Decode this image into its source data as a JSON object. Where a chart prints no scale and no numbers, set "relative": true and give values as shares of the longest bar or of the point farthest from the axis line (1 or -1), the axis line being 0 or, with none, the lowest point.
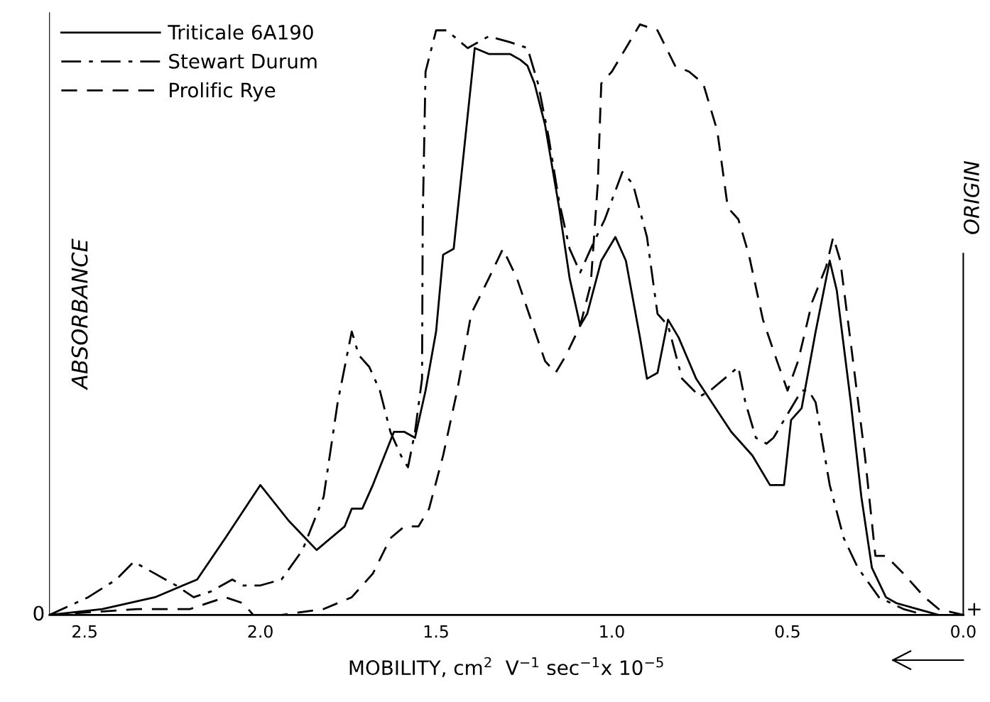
{
  "chart_data": {
    "type": "line",
    "relative": true,
    "xlabel": "MOBILITY, cm$^{2}$  V$^{−1}$ sec$^{−1}$x 10$^{−5}$",
    "ylabel": "ABSORBANCE",
    "xlim": [
      2.6,
      0.0
    ],
    "xticks": [
      {
        "value": 2.5,
        "label": "2.5"
      },
      {
        "value": 2.0,
        "label": "2.0"
      },
      {
        "value": 1.5,
        "label": "1.5"
      },
      {
        "value": 1.0,
        "label": "1.0"
      },
      {
        "value": 0.5,
        "label": "0.5"
      },
      {
        "value": 0.0,
        "label": "0.0"
      }
    ],
    "legend": "top left",
    "grid": false,
    "annotations": [
      "0",
      "+"
    ],
    "ref_lines": [
      {
        "axis": "x",
        "value": 0.0,
        "label": "ORIGIN",
        "color": "#000000"
      }
    ],
    "series": [
      {
        "name": "Triticale 6A190",
        "color": "#000000",
        "line_style": "solid",
        "x": [
          2.6,
          2.45,
          2.3,
          2.18,
          2.1,
          2.0,
          1.92,
          1.84,
          1.76,
          1.74,
          1.71,
          1.68,
          1.62,
          1.59,
          1.56,
          1.53,
          1.5,
          1.48,
          1.45,
          1.42,
          1.39,
          1.35,
          1.32,
          1.29,
          1.26,
          1.24,
          1.22,
          1.19,
          1.15,
          1.12,
          1.09,
          1.07,
          1.03,
          0.99,
          0.96,
          0.92,
          0.9,
          0.87,
          0.84,
          0.81,
          0.76,
          0.66,
          0.6,
          0.55,
          0.51,
          0.49,
          0.46,
          0.42,
          0.38,
          0.36,
          0.32,
          0.29,
          0.26,
          0.22,
          0.19,
          0.13,
          0.07,
          0.0
        ],
        "values": [
          0.0,
          0.01,
          0.03,
          0.06,
          0.13,
          0.22,
          0.16,
          0.11,
          0.15,
          0.18,
          0.18,
          0.22,
          0.31,
          0.31,
          0.3,
          0.38,
          0.48,
          0.61,
          0.62,
          0.79,
          0.96,
          0.95,
          0.95,
          0.95,
          0.94,
          0.93,
          0.9,
          0.83,
          0.69,
          0.57,
          0.49,
          0.51,
          0.6,
          0.64,
          0.6,
          0.47,
          0.4,
          0.41,
          0.5,
          0.47,
          0.4,
          0.31,
          0.27,
          0.22,
          0.22,
          0.33,
          0.35,
          0.48,
          0.6,
          0.55,
          0.36,
          0.2,
          0.08,
          0.03,
          0.02,
          0.01,
          0.0,
          0.0
        ]
      },
      {
        "name": "Stewart Durum",
        "color": "#000000",
        "line_style": "dashdot",
        "x": [
          2.6,
          2.49,
          2.41,
          2.36,
          2.3,
          2.24,
          2.19,
          2.14,
          2.08,
          2.05,
          2.0,
          1.94,
          1.88,
          1.82,
          1.78,
          1.74,
          1.72,
          1.69,
          1.66,
          1.63,
          1.6,
          1.58,
          1.56,
          1.54,
          1.538,
          1.53,
          1.5,
          1.47,
          1.41,
          1.35,
          1.29,
          1.24,
          1.21,
          1.18,
          1.15,
          1.12,
          1.09,
          1.06,
          1.02,
          0.97,
          0.94,
          0.9,
          0.87,
          0.84,
          0.8,
          0.75,
          0.72,
          0.64,
          0.62,
          0.59,
          0.56,
          0.54,
          0.5,
          0.46,
          0.44,
          0.42,
          0.38,
          0.34,
          0.3,
          0.24,
          0.17,
          0.11,
          0.0
        ],
        "values": [
          0.0,
          0.03,
          0.06,
          0.09,
          0.07,
          0.05,
          0.03,
          0.04,
          0.06,
          0.05,
          0.05,
          0.06,
          0.11,
          0.2,
          0.36,
          0.48,
          0.44,
          0.42,
          0.38,
          0.31,
          0.27,
          0.25,
          0.31,
          0.4,
          0.67,
          0.92,
          0.99,
          0.99,
          0.96,
          0.98,
          0.97,
          0.96,
          0.9,
          0.81,
          0.7,
          0.62,
          0.58,
          0.62,
          0.67,
          0.75,
          0.73,
          0.64,
          0.51,
          0.49,
          0.4,
          0.37,
          0.38,
          0.42,
          0.36,
          0.3,
          0.29,
          0.3,
          0.34,
          0.38,
          0.38,
          0.36,
          0.22,
          0.13,
          0.08,
          0.03,
          0.01,
          0.0,
          0.0
        ]
      },
      {
        "name": "Prolific Rye",
        "color": "#000000",
        "line_style": "dashed",
        "x": [
          2.6,
          2.35,
          2.2,
          2.1,
          2.05,
          2.02,
          1.94,
          1.82,
          1.74,
          1.68,
          1.63,
          1.59,
          1.55,
          1.52,
          1.48,
          1.44,
          1.4,
          1.35,
          1.31,
          1.27,
          1.23,
          1.19,
          1.16,
          1.13,
          1.09,
          1.06,
          1.04,
          1.03,
          1.0,
          0.96,
          0.92,
          0.87,
          0.82,
          0.78,
          0.74,
          0.7,
          0.67,
          0.64,
          0.61,
          0.57,
          0.53,
          0.5,
          0.47,
          0.43,
          0.39,
          0.37,
          0.35,
          0.32,
          0.28,
          0.25,
          0.22,
          0.17,
          0.11,
          0.07,
          0.0
        ],
        "values": [
          0.0,
          0.01,
          0.01,
          0.03,
          0.02,
          0.0,
          0.0,
          0.01,
          0.03,
          0.07,
          0.13,
          0.15,
          0.15,
          0.18,
          0.27,
          0.38,
          0.51,
          0.57,
          0.62,
          0.57,
          0.5,
          0.43,
          0.41,
          0.44,
          0.49,
          0.56,
          0.73,
          0.9,
          0.92,
          0.96,
          1.0,
          0.99,
          0.93,
          0.92,
          0.9,
          0.82,
          0.69,
          0.67,
          0.61,
          0.5,
          0.43,
          0.38,
          0.43,
          0.53,
          0.59,
          0.64,
          0.6,
          0.46,
          0.27,
          0.1,
          0.1,
          0.07,
          0.03,
          0.01,
          0.0
        ]
      }
    ]
  }
}
